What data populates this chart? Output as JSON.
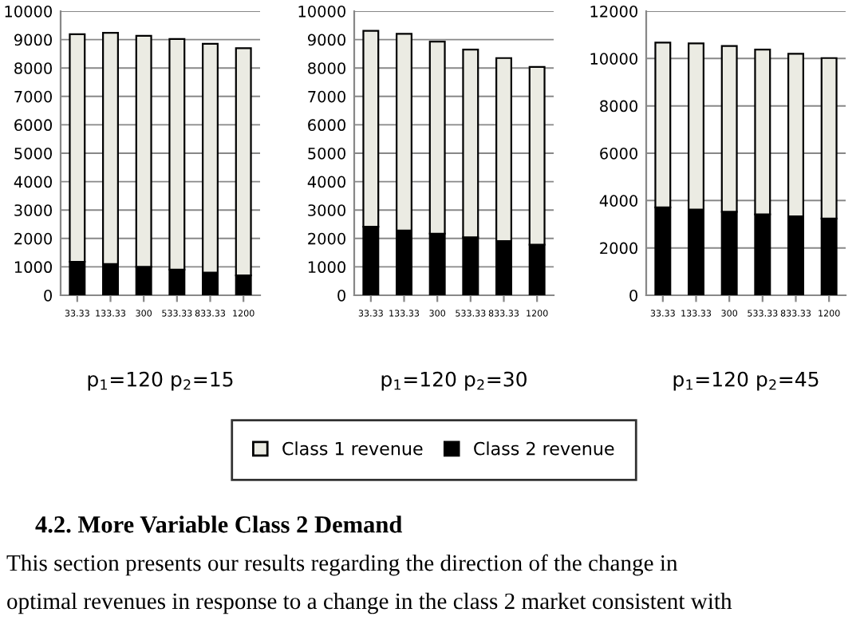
{
  "chart_data": [
    {
      "type": "bar",
      "stacked": true,
      "xlabel": "p$_{1}$=120 p$_{2}$=15",
      "categories": [
        "33.33",
        "133.33",
        "300",
        "533.33",
        "833.33",
        "1200"
      ],
      "ylim": [
        0,
        10000
      ],
      "yticks": [
        0,
        1000,
        2000,
        3000,
        4000,
        5000,
        6000,
        7000,
        8000,
        9000,
        10000
      ],
      "grid": "y",
      "legend": "bottom",
      "series": [
        {
          "name": "Class 2 revenue",
          "color": "#000000",
          "values": [
            1180,
            1100,
            1000,
            900,
            800,
            700
          ]
        },
        {
          "name": "Class 1 revenue",
          "color": "#ebebe3",
          "values": [
            8010,
            8140,
            8130,
            8120,
            8050,
            8000
          ]
        }
      ]
    },
    {
      "type": "bar",
      "stacked": true,
      "xlabel": "p$_{1}$=120 p$_{2}$=30",
      "categories": [
        "33.33",
        "133.33",
        "300",
        "533.33",
        "833.33",
        "1200"
      ],
      "ylim": [
        0,
        10000
      ],
      "yticks": [
        0,
        1000,
        2000,
        3000,
        4000,
        5000,
        6000,
        7000,
        8000,
        9000,
        10000
      ],
      "grid": "y",
      "series": [
        {
          "color": "#000000",
          "values": [
            2410,
            2280,
            2170,
            2040,
            1910,
            1780
          ]
        },
        {
          "color": "#ebebe3",
          "values": [
            6900,
            6920,
            6760,
            6610,
            6440,
            6260
          ]
        }
      ]
    },
    {
      "type": "bar",
      "stacked": true,
      "xlabel": "p$_{1}$=120 p$_{2}$=45",
      "categories": [
        "33.33",
        "133.33",
        "300",
        "533.33",
        "833.33",
        "1200"
      ],
      "ylim": [
        0,
        12000
      ],
      "yticks": [
        0,
        2000,
        4000,
        6000,
        8000,
        10000,
        12000
      ],
      "grid": "y",
      "series": [
        {
          "color": "#000000",
          "values": [
            3710,
            3620,
            3530,
            3420,
            3330,
            3240
          ]
        },
        {
          "color": "#ebebe3",
          "values": [
            6960,
            7020,
            7000,
            6960,
            6870,
            6780
          ]
        }
      ],
      "annotations": [
        "4.2. More Variable Class 2 Demand",
        "This section presents our results regarding the direction of the change in",
        "optimal revenues in response to a change in the class 2 market consistent with"
      ]
    }
  ]
}
